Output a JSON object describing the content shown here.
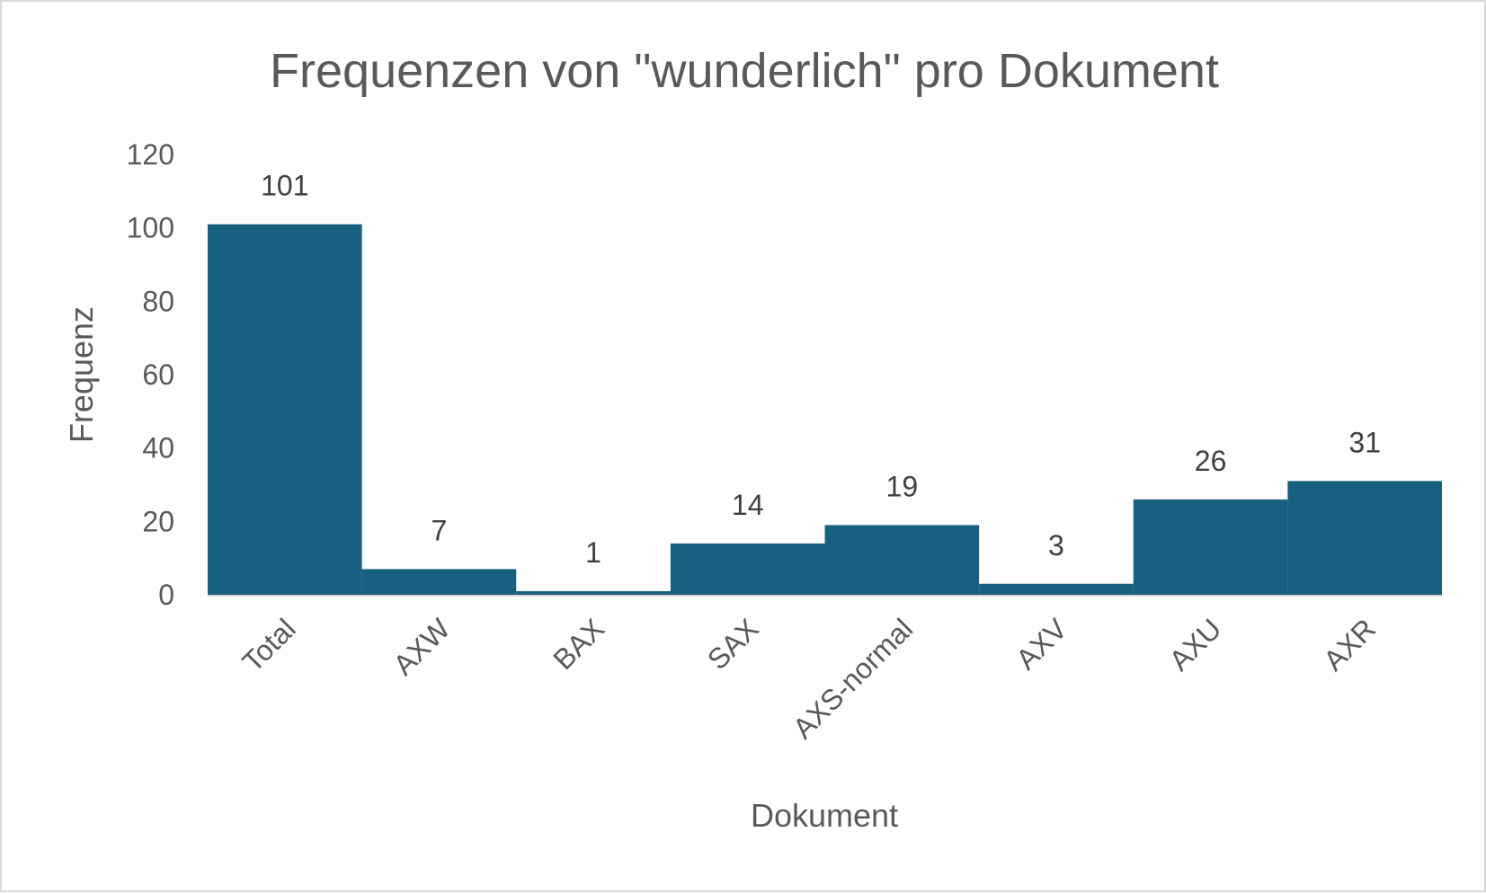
{
  "chart_data": {
    "type": "bar",
    "title": "Frequenzen von \"wunderlich\" pro Dokument",
    "xlabel": "Dokument",
    "ylabel": "Frequenz",
    "categories": [
      "Total",
      "AXW",
      "BAX",
      "SAX",
      "AXS-normal",
      "AXV",
      "AXU",
      "AXR"
    ],
    "values": [
      101,
      7,
      1,
      14,
      19,
      3,
      26,
      31
    ],
    "yticks": [
      "0",
      "20",
      "40",
      "60",
      "80",
      "100",
      "120"
    ],
    "ylim": [
      0,
      120
    ],
    "grid": false,
    "legend": "none",
    "bar_color": "#17607f",
    "axis_color": "#d9d9d9"
  }
}
